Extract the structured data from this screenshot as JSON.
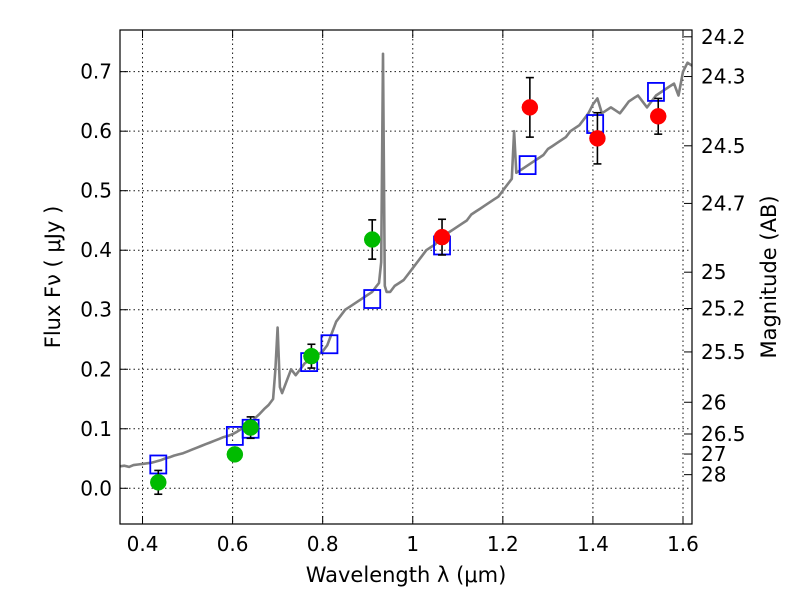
{
  "chart_data": {
    "type": "scatter",
    "title": "",
    "xlabel": "Wavelength  λ (μm)",
    "ylabel": "Flux  Fν ( μJy )",
    "ylabel_right": "Magnitude (AB)",
    "xlim": [
      0.35,
      1.62
    ],
    "ylim": [
      -0.06,
      0.77
    ],
    "grid": true,
    "x_ticks": [
      0.4,
      0.6,
      0.8,
      1.0,
      1.2,
      1.4,
      1.6
    ],
    "x_tick_labels": [
      "0.4",
      "0.6",
      "0.8",
      "1",
      "1.2",
      "1.4",
      "1.6"
    ],
    "y_ticks": [
      0.0,
      0.1,
      0.2,
      0.3,
      0.4,
      0.5,
      0.6,
      0.7
    ],
    "y_tick_labels": [
      "0.0",
      "0.1",
      "0.2",
      "0.3",
      "0.4",
      "0.5",
      "0.6",
      "0.7"
    ],
    "right_ticks": [
      {
        "mag": 24.2,
        "label": "24.2"
      },
      {
        "mag": 24.3,
        "label": "24.3"
      },
      {
        "mag": 24.5,
        "label": "24.5"
      },
      {
        "mag": 24.7,
        "label": "24.7"
      },
      {
        "mag": 25.0,
        "label": "25"
      },
      {
        "mag": 25.2,
        "label": "25.2"
      },
      {
        "mag": 25.5,
        "label": "25.5"
      },
      {
        "mag": 26.0,
        "label": "26"
      },
      {
        "mag": 26.5,
        "label": "26.5"
      },
      {
        "mag": 27.0,
        "label": "27"
      },
      {
        "mag": 28.0,
        "label": "28"
      }
    ],
    "series": [
      {
        "name": "model-spectrum",
        "kind": "line",
        "color": "#808080",
        "x": [
          0.35,
          0.36,
          0.37,
          0.38,
          0.39,
          0.4,
          0.41,
          0.42,
          0.43,
          0.44,
          0.45,
          0.46,
          0.47,
          0.48,
          0.49,
          0.5,
          0.51,
          0.52,
          0.53,
          0.54,
          0.55,
          0.56,
          0.57,
          0.58,
          0.59,
          0.6,
          0.61,
          0.62,
          0.63,
          0.64,
          0.65,
          0.66,
          0.67,
          0.68,
          0.69,
          0.695,
          0.7,
          0.705,
          0.71,
          0.72,
          0.73,
          0.74,
          0.75,
          0.76,
          0.77,
          0.78,
          0.79,
          0.8,
          0.81,
          0.82,
          0.83,
          0.84,
          0.85,
          0.86,
          0.87,
          0.88,
          0.89,
          0.9,
          0.91,
          0.92,
          0.925,
          0.93,
          0.934,
          0.938,
          0.942,
          0.95,
          0.96,
          0.97,
          0.98,
          0.99,
          1.0,
          1.01,
          1.02,
          1.03,
          1.04,
          1.05,
          1.06,
          1.07,
          1.08,
          1.09,
          1.1,
          1.11,
          1.12,
          1.13,
          1.14,
          1.15,
          1.16,
          1.17,
          1.18,
          1.19,
          1.2,
          1.21,
          1.22,
          1.225,
          1.23,
          1.24,
          1.25,
          1.26,
          1.27,
          1.28,
          1.29,
          1.3,
          1.31,
          1.32,
          1.33,
          1.34,
          1.35,
          1.36,
          1.37,
          1.38,
          1.39,
          1.4,
          1.41,
          1.42,
          1.43,
          1.44,
          1.45,
          1.46,
          1.47,
          1.48,
          1.49,
          1.5,
          1.51,
          1.52,
          1.53,
          1.54,
          1.55,
          1.56,
          1.57,
          1.58,
          1.59,
          1.6,
          1.61,
          1.62
        ],
        "y": [
          0.037,
          0.038,
          0.036,
          0.039,
          0.04,
          0.041,
          0.042,
          0.043,
          0.045,
          0.047,
          0.05,
          0.052,
          0.055,
          0.057,
          0.059,
          0.062,
          0.065,
          0.068,
          0.071,
          0.074,
          0.077,
          0.08,
          0.083,
          0.086,
          0.088,
          0.091,
          0.095,
          0.1,
          0.105,
          0.11,
          0.118,
          0.125,
          0.133,
          0.14,
          0.15,
          0.2,
          0.27,
          0.17,
          0.16,
          0.18,
          0.2,
          0.19,
          0.2,
          0.21,
          0.215,
          0.22,
          0.225,
          0.23,
          0.24,
          0.26,
          0.28,
          0.29,
          0.3,
          0.305,
          0.31,
          0.315,
          0.32,
          0.325,
          0.33,
          0.34,
          0.345,
          0.38,
          0.73,
          0.34,
          0.33,
          0.33,
          0.34,
          0.345,
          0.35,
          0.36,
          0.37,
          0.38,
          0.39,
          0.4,
          0.405,
          0.41,
          0.42,
          0.425,
          0.43,
          0.435,
          0.44,
          0.445,
          0.45,
          0.46,
          0.465,
          0.47,
          0.475,
          0.48,
          0.485,
          0.49,
          0.5,
          0.51,
          0.52,
          0.6,
          0.53,
          0.535,
          0.54,
          0.545,
          0.55,
          0.555,
          0.56,
          0.57,
          0.575,
          0.58,
          0.585,
          0.59,
          0.6,
          0.605,
          0.61,
          0.62,
          0.63,
          0.645,
          0.655,
          0.63,
          0.635,
          0.64,
          0.635,
          0.63,
          0.64,
          0.65,
          0.655,
          0.66,
          0.65,
          0.64,
          0.65,
          0.66,
          0.665,
          0.67,
          0.675,
          0.68,
          0.66,
          0.7,
          0.715,
          0.71
        ]
      },
      {
        "name": "model-photometry",
        "kind": "open-square",
        "color": "#0000ff",
        "x": [
          0.435,
          0.605,
          0.64,
          0.77,
          0.815,
          0.91,
          1.065,
          1.255,
          1.405,
          1.54
        ],
        "y": [
          0.04,
          0.088,
          0.1,
          0.212,
          0.242,
          0.318,
          0.408,
          0.543,
          0.612,
          0.666
        ]
      },
      {
        "name": "observed-optical",
        "kind": "filled-circle",
        "color": "#00bb00",
        "x": [
          0.435,
          0.605,
          0.64,
          0.775,
          0.91
        ],
        "y": [
          0.01,
          0.057,
          0.102,
          0.222,
          0.418
        ],
        "err": [
          0.02,
          0.0,
          0.018,
          0.02,
          0.033
        ]
      },
      {
        "name": "observed-nir",
        "kind": "filled-circle",
        "color": "#ff0000",
        "x": [
          1.065,
          1.26,
          1.41,
          1.545
        ],
        "y": [
          0.422,
          0.64,
          0.588,
          0.625
        ],
        "err": [
          0.03,
          0.05,
          0.043,
          0.03
        ]
      }
    ]
  }
}
